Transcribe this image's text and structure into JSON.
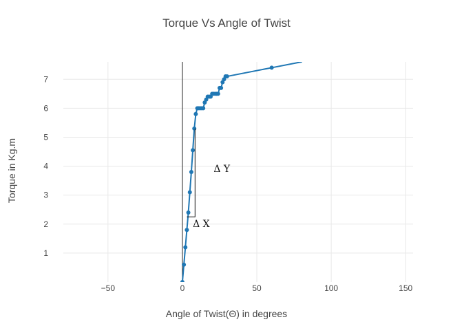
{
  "chart_data": {
    "type": "line",
    "title": "Torque Vs Angle of Twist",
    "xlabel": "Angle of Twist(Θ) in degrees",
    "ylabel": "Torque in Kg.m",
    "xlim": [
      -80,
      155
    ],
    "ylim": [
      0,
      7.6
    ],
    "x_ticks": [
      -50,
      0,
      50,
      100,
      150
    ],
    "y_ticks": [
      1,
      2,
      3,
      4,
      5,
      6,
      7
    ],
    "grid": true,
    "legend": "none",
    "series": [
      {
        "color": "#1f77b4",
        "x": [
          0,
          1,
          2,
          3,
          4,
          5,
          6,
          7,
          8,
          9,
          10,
          11,
          12,
          13,
          14,
          15,
          16,
          17,
          18,
          19,
          20,
          21,
          22,
          23,
          24,
          25,
          26,
          27,
          28,
          29,
          30,
          60,
          80
        ],
        "y": [
          0,
          0.6,
          1.2,
          1.8,
          2.4,
          3.1,
          3.8,
          4.55,
          5.3,
          5.8,
          6.0,
          6.0,
          6.0,
          6.0,
          6.0,
          6.2,
          6.3,
          6.4,
          6.4,
          6.4,
          6.5,
          6.5,
          6.5,
          6.5,
          6.5,
          6.7,
          6.7,
          6.9,
          7.0,
          7.1,
          7.1,
          7.4,
          7.6
        ]
      }
    ],
    "annotations": [
      {
        "text": "Δ Y",
        "x": 21,
        "y": 3.8
      },
      {
        "text": "Δ X",
        "x": 7,
        "y": 1.9
      }
    ],
    "triangle": {
      "x1": 3,
      "x2": 8.5,
      "y_bottom": 2.25,
      "y_top": 5.3
    }
  }
}
